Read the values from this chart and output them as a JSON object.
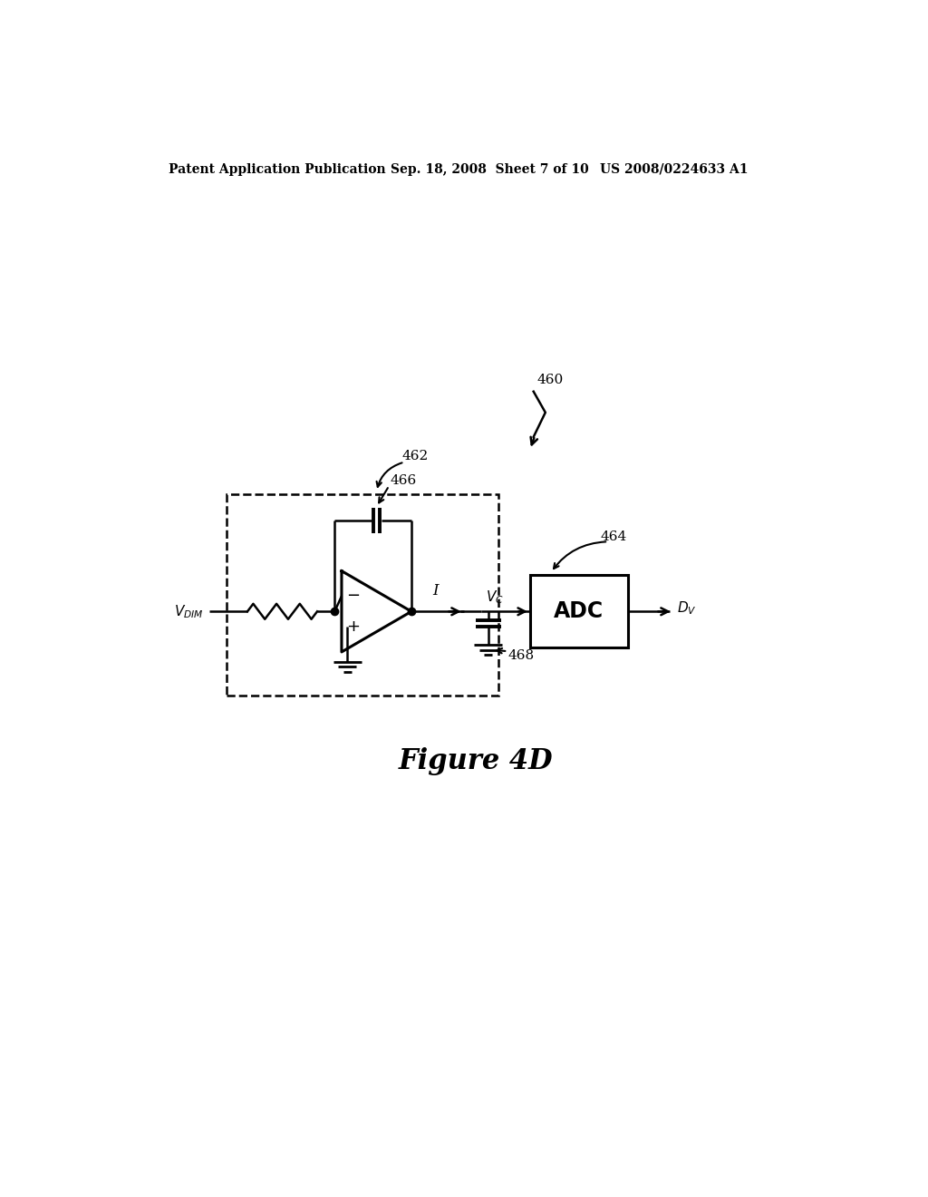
{
  "background_color": "#ffffff",
  "header_left": "Patent Application Publication",
  "header_center": "Sep. 18, 2008  Sheet 7 of 10",
  "header_right": "US 2008/0224633 A1",
  "figure_label": "Figure 4D",
  "ref_460": "460",
  "ref_462": "462",
  "ref_464": "464",
  "ref_466": "466",
  "ref_468": "468",
  "label_adc": "ADC",
  "label_I": "I"
}
